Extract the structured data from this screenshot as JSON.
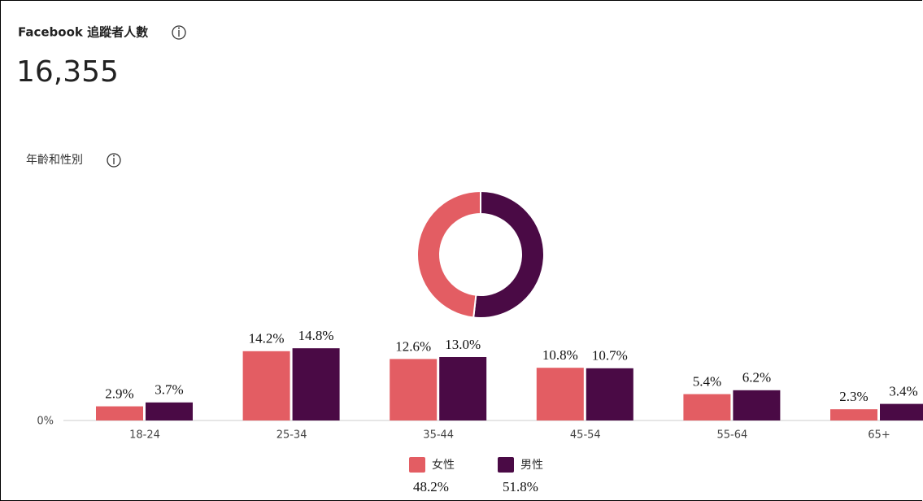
{
  "header": {
    "title": "Facebook 追蹤者人數",
    "count": "16,355",
    "section": "年齡和性別"
  },
  "chart_data": [
    {
      "type": "pie",
      "values": [
        48.2,
        51.8
      ],
      "value_labels": [
        "48.2%",
        "51.8%"
      ],
      "colors": [
        "#e35d63",
        "#4a0a45"
      ]
    },
    {
      "type": "bar",
      "categories": [
        "18-24",
        "25-34",
        "35-44",
        "45-54",
        "55-64",
        "65+"
      ],
      "series": [
        {
          "name": "女性",
          "color": "#e35d63",
          "values": [
            2.9,
            14.2,
            12.6,
            10.8,
            5.4,
            2.3
          ],
          "value_labels": [
            "2.9%",
            "14.2%",
            "12.6%",
            "10.8%",
            "5.4%",
            "2.3%"
          ]
        },
        {
          "name": "男性",
          "color": "#4a0a45",
          "values": [
            3.7,
            14.8,
            13.0,
            10.7,
            6.2,
            3.4
          ],
          "value_labels": [
            "3.7%",
            "14.8%",
            "13.0%",
            "10.7%",
            "6.2%",
            "3.4%"
          ]
        }
      ],
      "ylim": [
        0,
        20
      ],
      "yticks": [
        {
          "value": 0,
          "label": "0%"
        }
      ]
    }
  ]
}
